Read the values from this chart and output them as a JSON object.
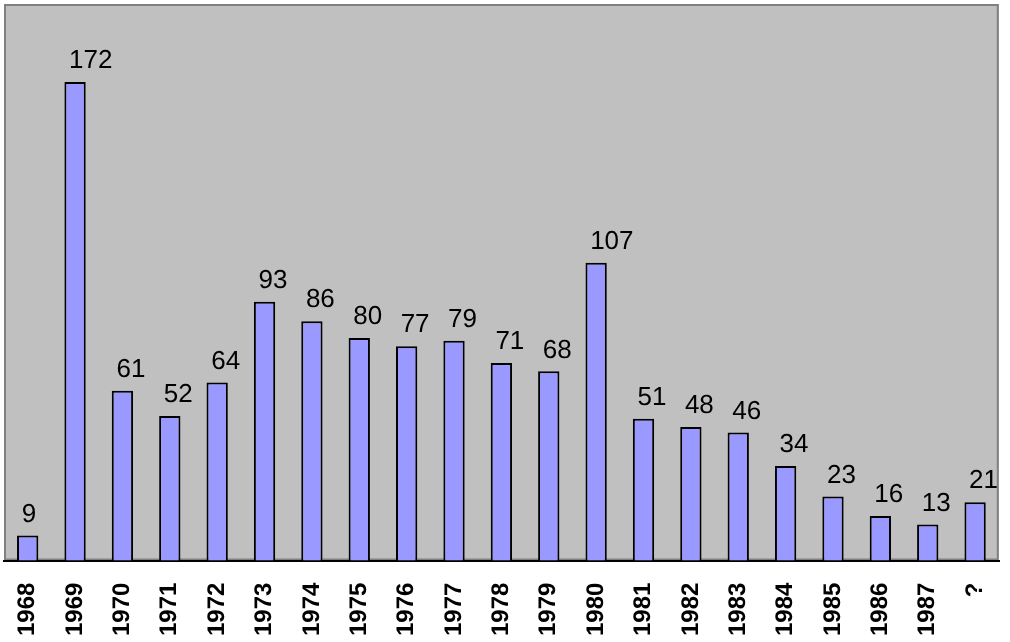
{
  "chart_data": {
    "type": "bar",
    "categories": [
      "1968",
      "1969",
      "1970",
      "1971",
      "1972",
      "1973",
      "1974",
      "1975",
      "1976",
      "1977",
      "1978",
      "1979",
      "1980",
      "1981",
      "1982",
      "1983",
      "1984",
      "1985",
      "1986",
      "1987",
      "?"
    ],
    "values": [
      9,
      172,
      61,
      52,
      64,
      93,
      86,
      80,
      77,
      79,
      71,
      68,
      107,
      51,
      48,
      46,
      34,
      23,
      16,
      13,
      21
    ],
    "color": "#9999ff",
    "data_labels": true,
    "tick_labels": "x",
    "grid": false,
    "legend": false
  }
}
